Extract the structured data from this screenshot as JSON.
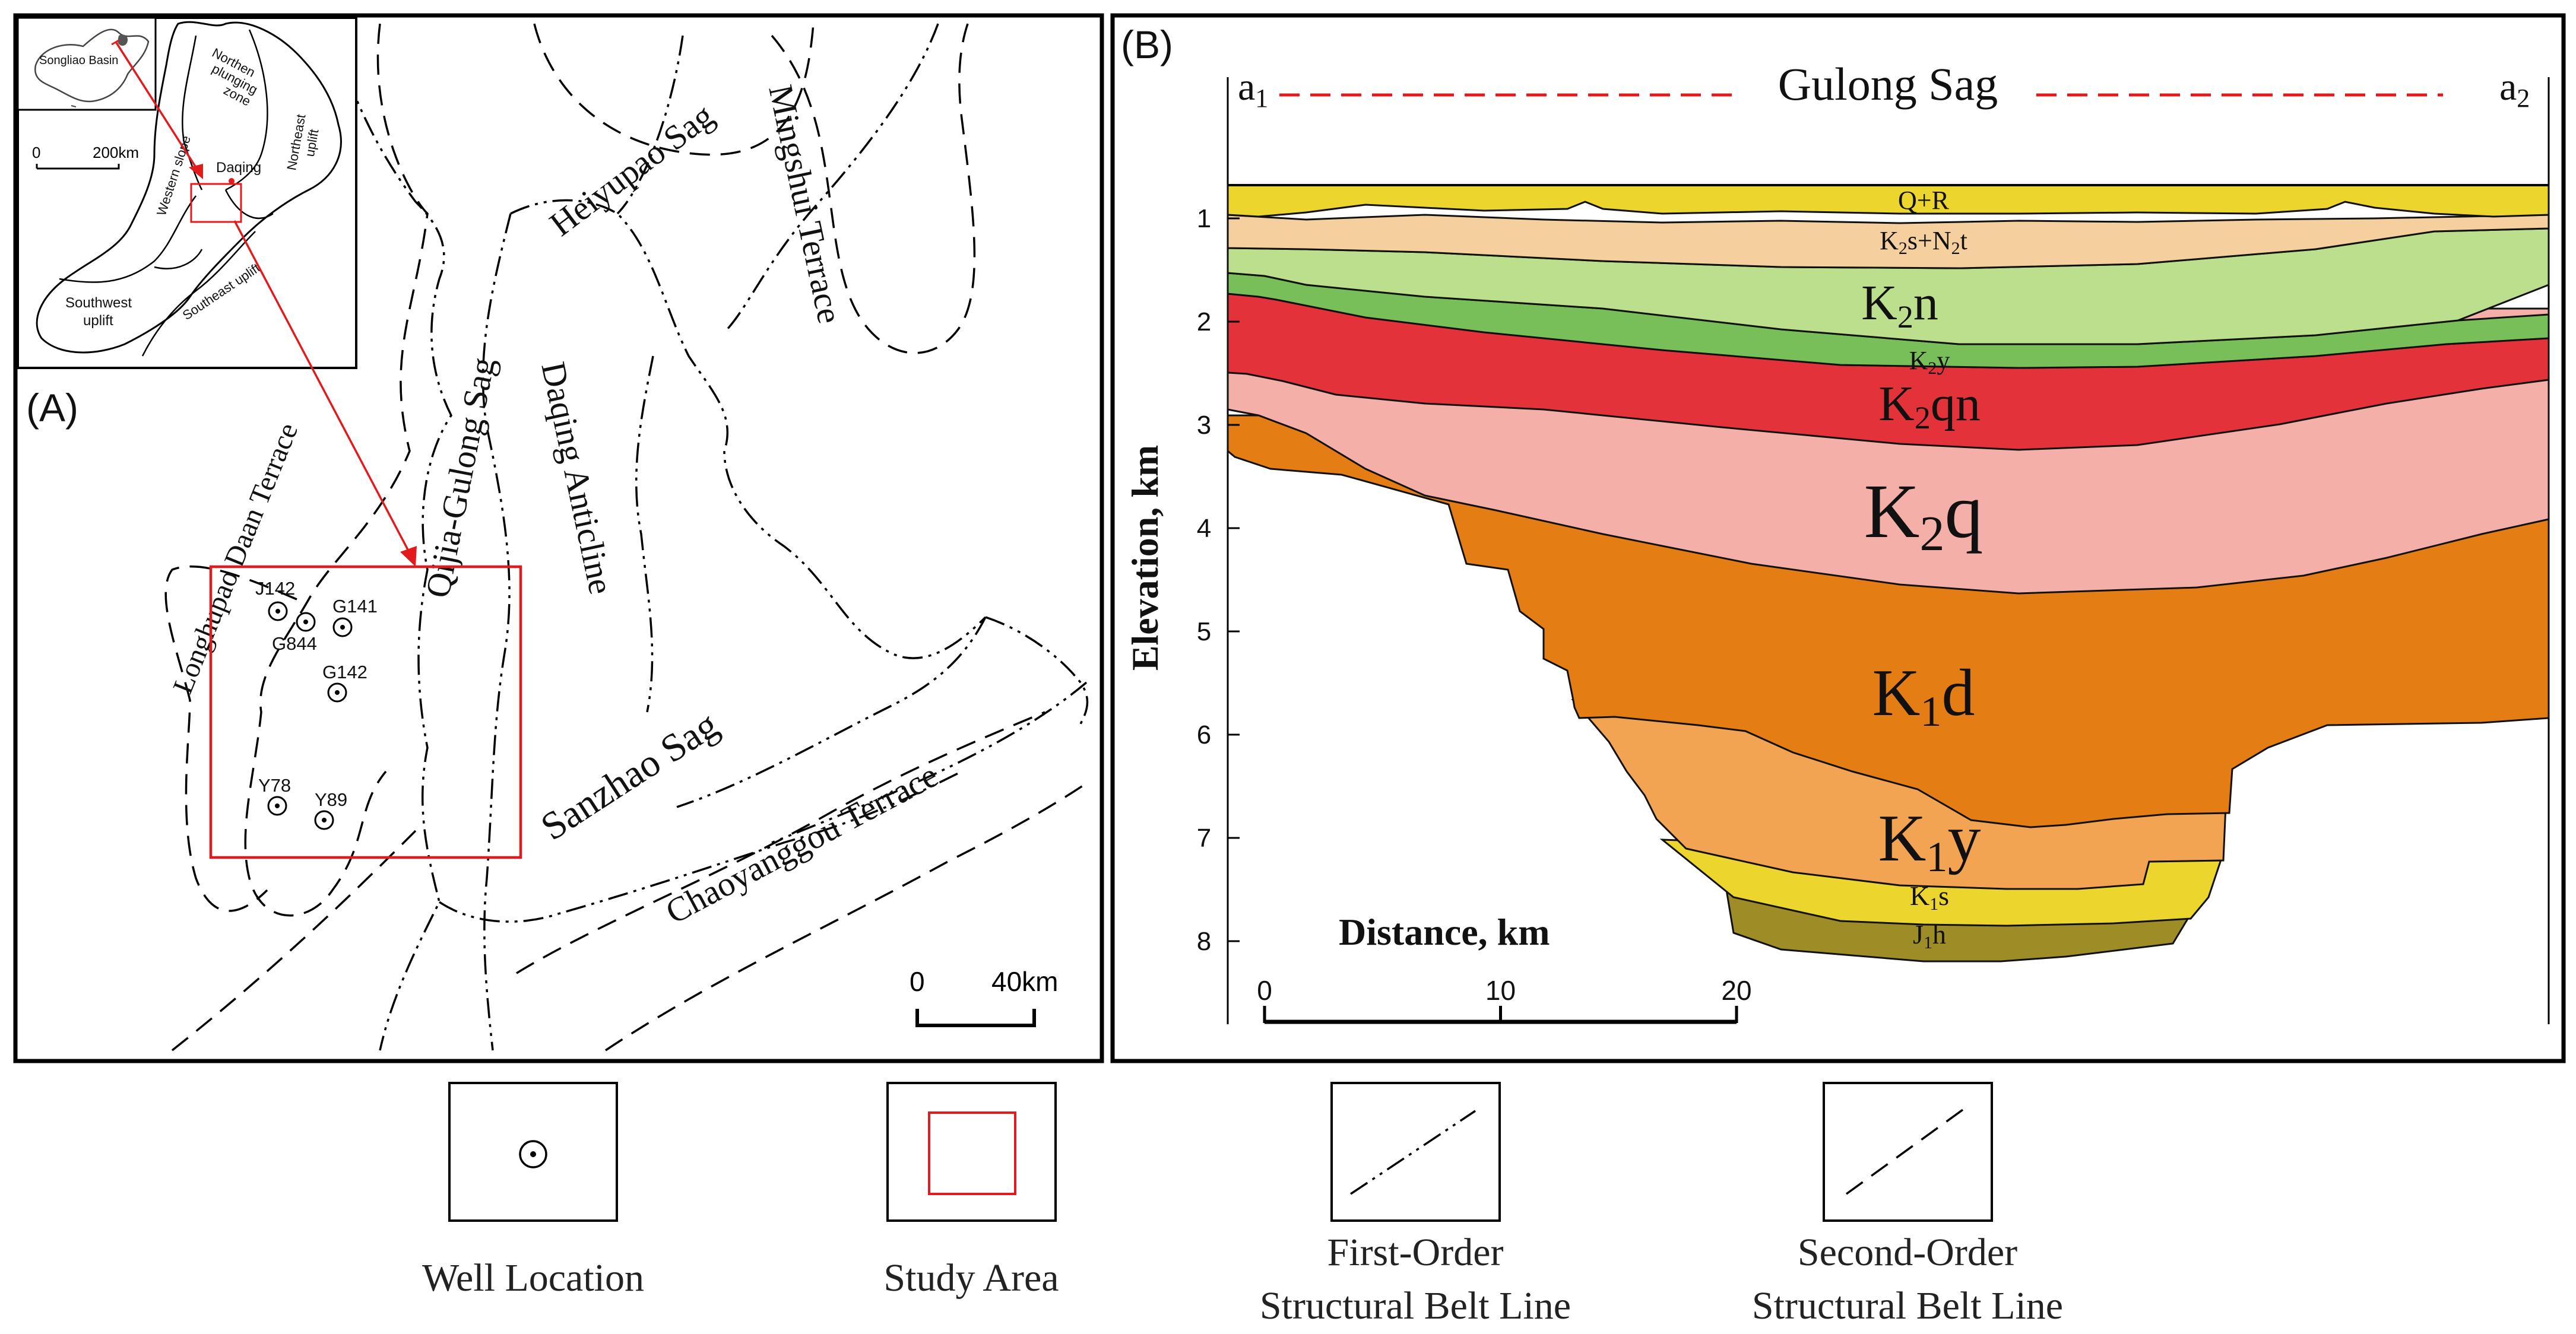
{
  "panel_a": {
    "label": "(A)",
    "inset": {
      "basin_label": "Songliao Basin",
      "scale_zero": "0",
      "scale_max": "200km",
      "city": "Daqing",
      "regions": [
        "Western slope",
        "Northen plunging zone",
        "Northeast uplift",
        "Southwest uplift",
        "Southeast uplift"
      ]
    },
    "units": {
      "heiyupao": "Heiyupao Sag",
      "mingshui": "Mingshui Terrace",
      "qijia": "Qijia-Gulong Sag",
      "daqing": "Daqing Anticline",
      "longhupao": "Longhupao Daan Terrace",
      "sanzhao": "Sanzhao Sag",
      "chaoyanggou": "Chaoyanggou Terrace"
    },
    "wells": [
      "J142",
      "G844",
      "G141",
      "G142",
      "Y78",
      "Y89"
    ],
    "scale": {
      "zero": "0",
      "max": "40km"
    },
    "colors": {
      "study_area": "#e31a1c",
      "arrow": "#e31a1c"
    }
  },
  "panel_b": {
    "label": "(B)",
    "title": "Gulong Sag",
    "endpoint_left": {
      "base": "a",
      "sub": "1"
    },
    "endpoint_right": {
      "base": "a",
      "sub": "2"
    },
    "y_axis_title": "Elevation, km",
    "y_ticks": [
      "1",
      "2",
      "3",
      "4",
      "5",
      "6",
      "7",
      "8"
    ],
    "x_axis_title": "Distance, km",
    "x_ticks": [
      "0",
      "10",
      "20"
    ],
    "layers": [
      {
        "id": "QR",
        "parts": [
          "Q+R"
        ],
        "color": "#ecd52c"
      },
      {
        "id": "K2s",
        "parts": [
          "K",
          "2",
          "s+N",
          "2",
          "t"
        ],
        "color": "#f6cf9e"
      },
      {
        "id": "K2n",
        "parts": [
          "K",
          "2",
          "n"
        ],
        "color": "#bcdf8d"
      },
      {
        "id": "K2y",
        "parts": [
          "K",
          "2",
          "y"
        ],
        "color": "#78bf5a"
      },
      {
        "id": "K2qn",
        "parts": [
          "K",
          "2",
          "qn"
        ],
        "color": "#e3323a"
      },
      {
        "id": "K2q",
        "parts": [
          "K",
          "2",
          "q"
        ],
        "color": "#f4b0a8"
      },
      {
        "id": "K1d",
        "parts": [
          "K",
          "1",
          "d"
        ],
        "color": "#e47d14"
      },
      {
        "id": "K1y",
        "parts": [
          "K",
          "1",
          "y"
        ],
        "color": "#f3a452"
      },
      {
        "id": "K1s",
        "parts": [
          "K",
          "1",
          "s"
        ],
        "color": "#ecd52c"
      },
      {
        "id": "J1h",
        "parts": [
          "J",
          "1",
          "h"
        ],
        "color": "#9e8c26"
      }
    ]
  },
  "legend": {
    "well": "Well Location",
    "study": "Study Area",
    "first": [
      "First-Order",
      "Structural Belt Line"
    ],
    "second": [
      "Second-Order",
      "Structural Belt Line"
    ]
  }
}
